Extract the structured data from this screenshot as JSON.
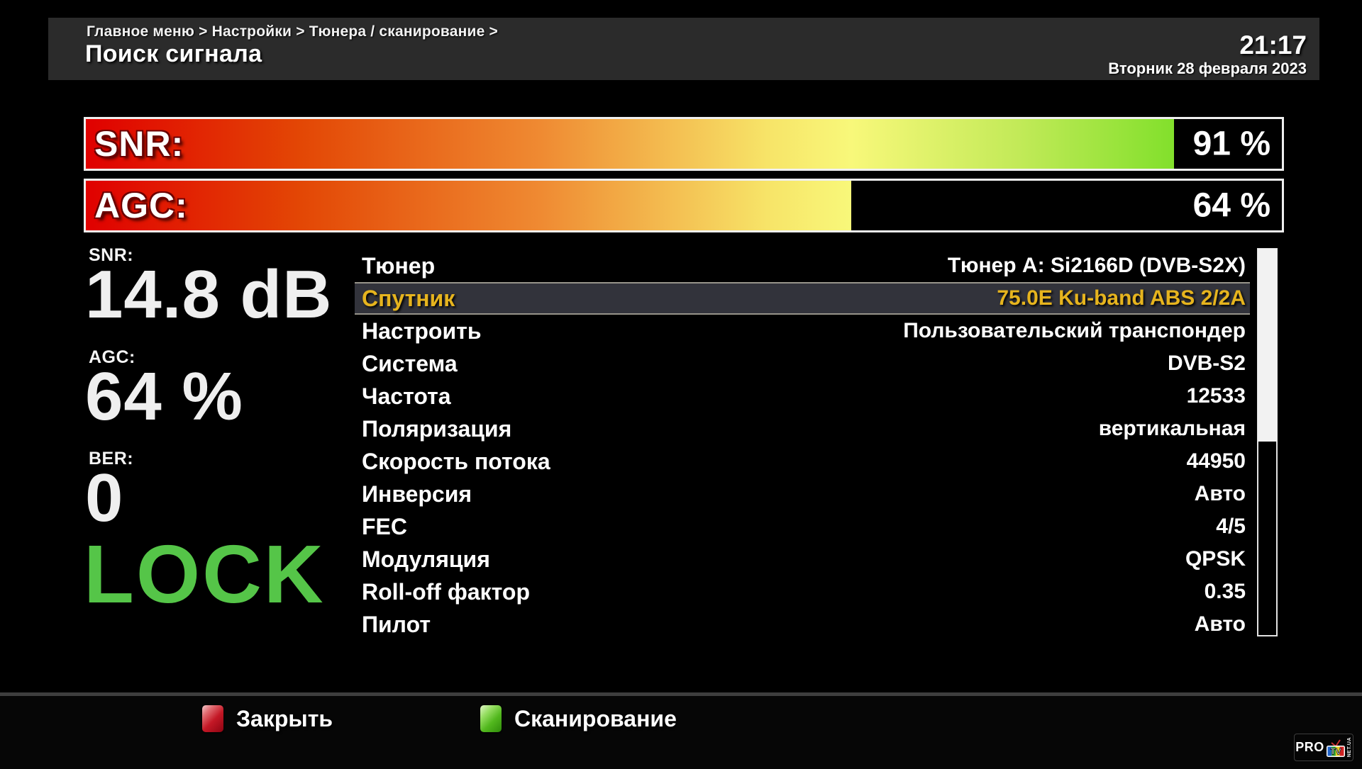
{
  "header": {
    "breadcrumb": "Главное меню > Настройки > Тюнера / сканирование >",
    "title": "Поиск сигнала",
    "clock": "21:17",
    "date": "Вторник 28 февраля 2023"
  },
  "signal_bars": {
    "snr": {
      "label": "SNR:",
      "percent": 91,
      "value_text": "91 %"
    },
    "agc": {
      "label": "AGC:",
      "percent": 64,
      "value_text": "64 %"
    }
  },
  "stats": {
    "snr": {
      "label": "SNR:",
      "value": "14.8 dB"
    },
    "agc": {
      "label": "AGC:",
      "value": "64 %"
    },
    "ber": {
      "label": "BER:",
      "value": "0"
    },
    "lock": "LOCK"
  },
  "menu": {
    "items": [
      {
        "label": "Тюнер",
        "value": "Тюнер A: Si2166D (DVB-S2X)",
        "selected": false
      },
      {
        "label": "Спутник",
        "value": "75.0E Ku-band ABS 2/2A",
        "selected": true
      },
      {
        "label": "Настроить",
        "value": "Пользовательский транспондер",
        "selected": false
      },
      {
        "label": "Система",
        "value": "DVB-S2",
        "selected": false
      },
      {
        "label": "Частота",
        "value": "12533",
        "selected": false
      },
      {
        "label": "Поляризация",
        "value": "вертикальная",
        "selected": false
      },
      {
        "label": "Скорость потока",
        "value": "44950",
        "selected": false
      },
      {
        "label": "Инверсия",
        "value": "Авто",
        "selected": false
      },
      {
        "label": "FEC",
        "value": "4/5",
        "selected": false
      },
      {
        "label": "Модуляция",
        "value": "QPSK",
        "selected": false
      },
      {
        "label": "Roll-off фактор",
        "value": "0.35",
        "selected": false
      },
      {
        "label": "Пилот",
        "value": "Авто",
        "selected": false
      }
    ]
  },
  "footer": {
    "keys": [
      {
        "label": "Закрыть",
        "color": "red"
      },
      {
        "label": "Сканирование",
        "color": "green"
      }
    ]
  },
  "logo": {
    "pro": "PRO",
    "tv": "TV",
    "side": "NET.UA"
  },
  "colors": {
    "header_bg": "#2b2b2b",
    "highlight_text": "#e6b41e",
    "highlight_bg": "#32333b",
    "lock_green": "#55c548",
    "key_red": "#c41826",
    "key_green": "#52b81e",
    "bar_gradient_start": "#e00000",
    "bar_gradient_end": "#5cd818"
  }
}
